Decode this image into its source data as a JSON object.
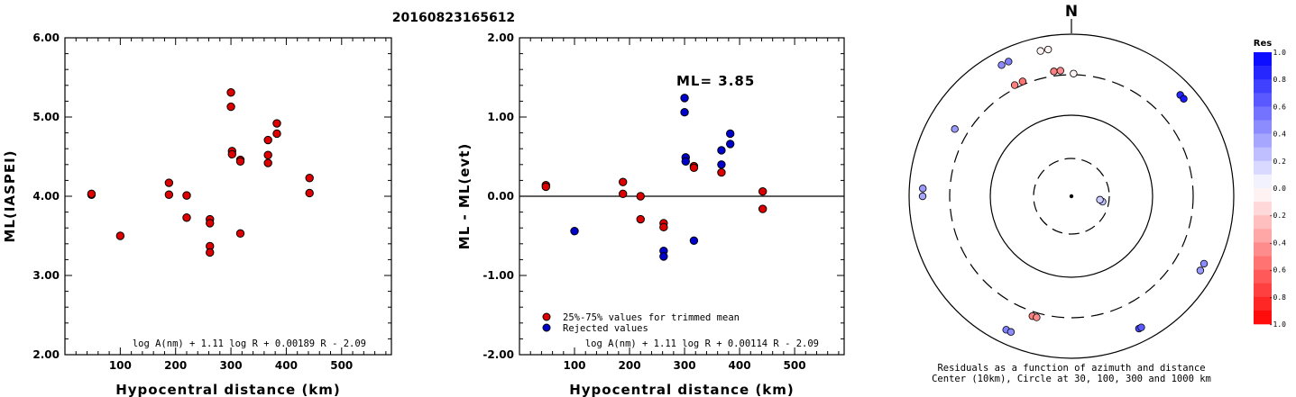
{
  "title": "20160823165612",
  "chart_data": [
    {
      "type": "scatter",
      "xlabel": "Hypocentral distance (km)",
      "ylabel": "ML(IASPEI)",
      "xlim": [
        0,
        590
      ],
      "ylim": [
        2.0,
        6.0
      ],
      "xticks": [
        "100",
        "200",
        "300",
        "400",
        "500"
      ],
      "yticks": [
        "2.00",
        "3.00",
        "4.00",
        "5.00",
        "6.00"
      ],
      "formula": "log A(nm) + 1.11 log R + 0.00189 R - 2.09",
      "series": [
        {
          "color": "#dd0000",
          "points": [
            [
              48,
              4.02
            ],
            [
              48,
              4.03
            ],
            [
              100,
              3.5
            ],
            [
              188,
              4.17
            ],
            [
              188,
              4.02
            ],
            [
              220,
              4.01
            ],
            [
              220,
              3.73
            ],
            [
              262,
              3.71
            ],
            [
              262,
              3.66
            ],
            [
              262,
              3.37
            ],
            [
              262,
              3.29
            ],
            [
              300,
              5.31
            ],
            [
              300,
              5.13
            ],
            [
              302,
              4.57
            ],
            [
              302,
              4.53
            ],
            [
              317,
              4.46
            ],
            [
              317,
              4.44
            ],
            [
              317,
              3.53
            ],
            [
              367,
              4.71
            ],
            [
              367,
              4.52
            ],
            [
              367,
              4.42
            ],
            [
              383,
              4.92
            ],
            [
              383,
              4.79
            ],
            [
              442,
              4.23
            ],
            [
              442,
              4.04
            ]
          ]
        }
      ]
    },
    {
      "type": "scatter",
      "xlabel": "Hypocentral distance (km)",
      "ylabel": "ML - ML(evt)",
      "xlim": [
        0,
        590
      ],
      "ylim": [
        -2.0,
        2.0
      ],
      "xticks": [
        "100",
        "200",
        "300",
        "400",
        "500"
      ],
      "yticks": [
        "-2.00",
        "-1.00",
        "0.00",
        "1.00",
        "2.00"
      ],
      "annotation": "ML= 3.85",
      "formula": "log A(nm) + 1.11 log R + 0.00114 R - 2.09",
      "legend": [
        "25%-75% values for trimmed mean",
        "Rejected values"
      ],
      "series": [
        {
          "name": "25%-75% values for trimmed mean",
          "color": "#dd0000",
          "points": [
            [
              48,
              0.14
            ],
            [
              48,
              0.12
            ],
            [
              188,
              0.18
            ],
            [
              188,
              0.03
            ],
            [
              220,
              0.0
            ],
            [
              220,
              -0.29
            ],
            [
              262,
              -0.34
            ],
            [
              262,
              -0.39
            ],
            [
              317,
              0.38
            ],
            [
              317,
              0.36
            ],
            [
              367,
              0.3
            ],
            [
              442,
              0.06
            ],
            [
              442,
              -0.16
            ]
          ]
        },
        {
          "name": "Rejected values",
          "color": "#0000cc",
          "points": [
            [
              100,
              -0.44
            ],
            [
              262,
              -0.69
            ],
            [
              262,
              -0.76
            ],
            [
              300,
              1.24
            ],
            [
              300,
              1.06
            ],
            [
              302,
              0.49
            ],
            [
              302,
              0.44
            ],
            [
              317,
              -0.56
            ],
            [
              367,
              0.58
            ],
            [
              367,
              0.4
            ],
            [
              383,
              0.79
            ],
            [
              383,
              0.66
            ]
          ]
        }
      ]
    }
  ],
  "polar": {
    "north_label": "N",
    "caption_line1": "Residuals as a function of azimuth and distance",
    "caption_line2": "Center (10km), Circle at 30, 100, 300 and 1000 km",
    "points": [
      {
        "az": 348,
        "dist": 1000,
        "res": -0.05
      },
      {
        "az": 351,
        "dist": 1000,
        "res": -0.05
      },
      {
        "az": 352,
        "dist": 800,
        "res": -0.5
      },
      {
        "az": 355,
        "dist": 800,
        "res": -0.45
      },
      {
        "az": 1,
        "dist": 650,
        "res": -0.05
      },
      {
        "az": 335,
        "dist": 1000,
        "res": 0.5
      },
      {
        "az": 332,
        "dist": 1000,
        "res": 0.45
      },
      {
        "az": 47,
        "dist": 1000,
        "res": 0.85
      },
      {
        "az": 49,
        "dist": 1000,
        "res": 0.9
      },
      {
        "az": 337,
        "dist": 330,
        "res": -0.55
      },
      {
        "az": 333,
        "dist": 330,
        "res": -0.5
      },
      {
        "az": 300,
        "dist": 440,
        "res": 0.4
      },
      {
        "az": 273,
        "dist": 1000,
        "res": 0.4
      },
      {
        "az": 270,
        "dist": 1000,
        "res": 0.35
      },
      {
        "az": 100,
        "dist": 25,
        "res": 0.25
      },
      {
        "az": 97,
        "dist": 23,
        "res": 0.2
      },
      {
        "az": 117,
        "dist": 1000,
        "res": 0.45
      },
      {
        "az": 120,
        "dist": 1000,
        "res": 0.4
      },
      {
        "az": 153,
        "dist": 1000,
        "res": 0.7
      },
      {
        "az": 152,
        "dist": 1000,
        "res": 0.65
      },
      {
        "az": 206,
        "dist": 1000,
        "res": 0.5
      },
      {
        "az": 204,
        "dist": 1000,
        "res": 0.45
      },
      {
        "az": 198,
        "dist": 800,
        "res": -0.5
      },
      {
        "az": 196,
        "dist": 800,
        "res": -0.45
      }
    ],
    "colorbar": {
      "title": "Res",
      "ticks": [
        "1.0",
        "0.8",
        "0.6",
        "0.4",
        "0.2",
        "0.0",
        "-0.2",
        "-0.4",
        "-0.6",
        "-0.8",
        "-1.0"
      ]
    }
  }
}
